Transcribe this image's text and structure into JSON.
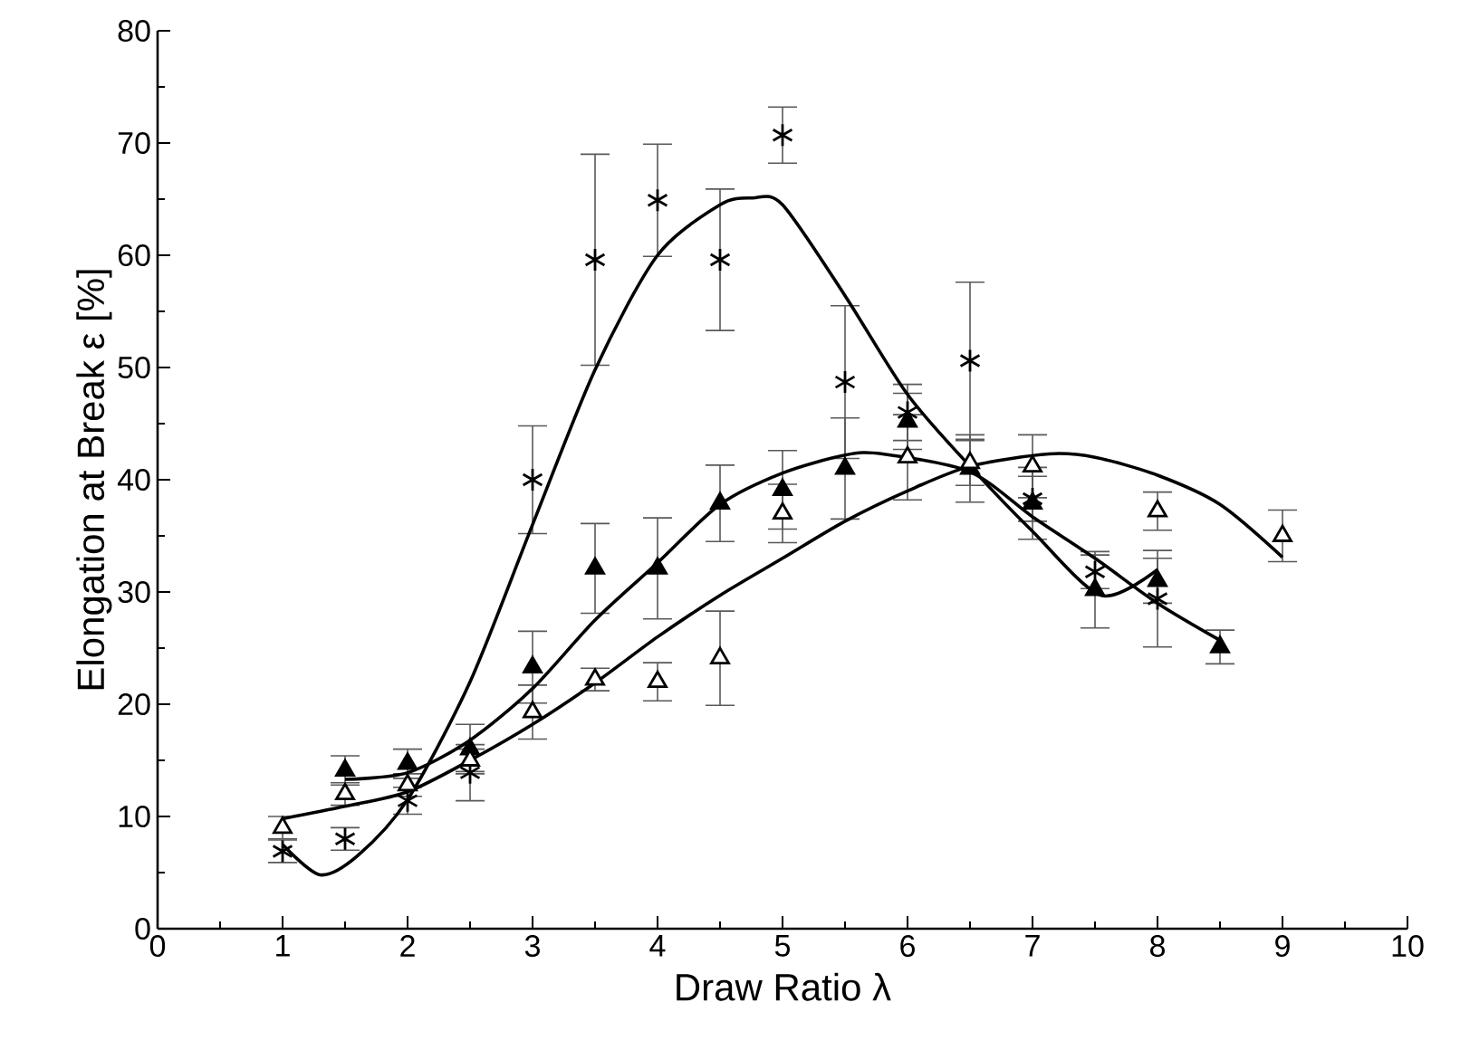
{
  "chart_data": {
    "type": "scatter",
    "xlabel": "Draw Ratio λ",
    "ylabel": "Elongation at Break ε [%]",
    "xlim": [
      0,
      10
    ],
    "ylim": [
      0,
      80
    ],
    "xticks": [
      0,
      1,
      2,
      3,
      4,
      5,
      6,
      7,
      8,
      9,
      10
    ],
    "yticks": [
      0,
      10,
      20,
      30,
      40,
      50,
      60,
      70,
      80
    ],
    "grid": false,
    "series": [
      {
        "marker": "cross",
        "color": "#000000",
        "x": [
          1,
          1.5,
          2,
          2.5,
          3,
          3.5,
          4,
          4.5,
          5,
          5.5,
          6,
          6.5,
          7,
          7.5,
          8
        ],
        "values": [
          6.9,
          8.0,
          11.4,
          13.9,
          40,
          59.6,
          64.9,
          59.6,
          70.7,
          48.7,
          46,
          50.6,
          38.3,
          31.8,
          29.4
        ],
        "errors": [
          1,
          1,
          1.2,
          2.5,
          4.8,
          9.4,
          5,
          6.3,
          2.5,
          6.8,
          2.5,
          7,
          2,
          1.5,
          4.3
        ]
      },
      {
        "marker": "triangle",
        "color": "#000000",
        "x": [
          1.5,
          2,
          2.5,
          3,
          3.5,
          4,
          4.5,
          5,
          5.5,
          6,
          6.5,
          7,
          7.5,
          8,
          8.5
        ],
        "values": [
          14.1,
          14.7,
          16,
          23.3,
          32.1,
          32.1,
          37.9,
          39.1,
          41,
          45.2,
          41,
          37.9,
          30.2,
          31,
          25.1
        ],
        "errors": [
          1.3,
          1.3,
          2.2,
          3.2,
          4,
          4.5,
          3.4,
          3.5,
          4.5,
          2.5,
          3,
          3.2,
          3.4,
          2,
          1.5
        ]
      },
      {
        "marker": "triangle",
        "color": "#000000",
        "x": [
          1,
          1.5,
          2,
          2.5,
          3,
          3.5,
          4,
          4.5,
          5,
          6,
          6.5,
          7,
          8,
          9
        ],
        "values": [
          9.0,
          12.0,
          12.8,
          15,
          19.3,
          22.2,
          22.0,
          24.1,
          37,
          42,
          41.5,
          41.2,
          37.2,
          35
        ],
        "errors": [
          1,
          1,
          1,
          1,
          2.4,
          1,
          1.7,
          4.2,
          2.6,
          3.8,
          2,
          2.8,
          1.7,
          2.3
        ]
      },
      {
        "type": "line",
        "marker": "none",
        "line_style": "solid",
        "color": "#000000",
        "x": [
          1,
          1.3,
          1.6,
          2,
          2.5,
          3,
          3.5,
          4,
          4.5,
          4.76,
          5,
          5.5,
          6,
          6.5,
          7,
          7.55,
          8
        ],
        "values": [
          7.5,
          4.8,
          6.5,
          11.5,
          22,
          36,
          49.8,
          60,
          64.5,
          65.1,
          64.5,
          56.4,
          47.6,
          41.2,
          35.4,
          29.7,
          32
        ]
      },
      {
        "type": "line",
        "marker": "none",
        "line_style": "solid",
        "color": "#000000",
        "x": [
          1.5,
          2,
          2.5,
          3,
          3.5,
          4,
          4.5,
          5,
          5.5,
          5.8,
          6.5,
          7,
          7.5,
          8,
          8.5
        ],
        "values": [
          13.3,
          13.9,
          16.8,
          21.4,
          27.5,
          32.6,
          37.8,
          40.6,
          42.2,
          42.3,
          40.7,
          36.7,
          33,
          29,
          25.7
        ]
      },
      {
        "type": "line",
        "marker": "none",
        "line_style": "solid",
        "color": "#000000",
        "x": [
          1,
          1.5,
          2,
          2.5,
          3,
          3.5,
          4,
          4.5,
          5,
          5.5,
          6,
          6.5,
          7.13,
          7.5,
          8,
          8.5,
          9
        ],
        "values": [
          9.8,
          10.9,
          12.2,
          15,
          18.2,
          21.9,
          26,
          29.7,
          33,
          36.3,
          39,
          41.2,
          42.3,
          42,
          40.4,
          37.8,
          33.1
        ]
      }
    ]
  }
}
